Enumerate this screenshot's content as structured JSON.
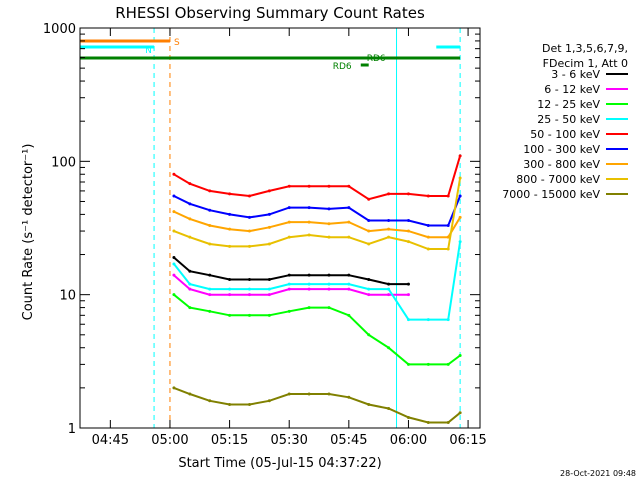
{
  "chart_data": {
    "type": "line",
    "title": "RHESSI Observing Summary Count Rates",
    "xlabel": "Start Time (05-Jul-15 04:37:22)",
    "ylabel": "Count Rate (s⁻¹ detector⁻¹)",
    "ylog": true,
    "xlim": [
      "04:37:22",
      "06:18:00"
    ],
    "ylim": [
      1,
      1000
    ],
    "x_ticks": [
      "04:45",
      "05:00",
      "05:15",
      "05:30",
      "05:45",
      "06:00",
      "06:15"
    ],
    "y_ticks": [
      "1",
      "10",
      "100",
      "1000"
    ],
    "legend_header": [
      "Det 1,3,5,6,7,9,",
      "FDecim 1, Att 0"
    ],
    "legend_position": "right",
    "footer_date": "28-Oct-2021 09:48",
    "x": [
      "05:01",
      "05:05",
      "05:10",
      "05:15",
      "05:20",
      "05:25",
      "05:30",
      "05:35",
      "05:40",
      "05:45",
      "05:50",
      "05:55",
      "06:00",
      "06:05",
      "06:10",
      "06:13"
    ],
    "series": [
      {
        "name": "3 - 6 keV",
        "color": "#000000",
        "values": [
          19,
          15,
          14,
          13,
          13,
          13,
          14,
          14,
          14,
          14,
          13,
          12,
          12,
          null,
          null,
          null
        ]
      },
      {
        "name": "6 - 12 keV",
        "color": "#ff00ff",
        "values": [
          14,
          11,
          10,
          10,
          10,
          10,
          11,
          11,
          11,
          11,
          10,
          10,
          10,
          null,
          null,
          null
        ]
      },
      {
        "name": "12 - 25 keV",
        "color": "#00ff00",
        "values": [
          10,
          8,
          7.5,
          7,
          7,
          7,
          7.5,
          8,
          8,
          7,
          5,
          4,
          3,
          3,
          3,
          3.5
        ]
      },
      {
        "name": "25 - 50 keV",
        "color": "#00ffff",
        "values": [
          17,
          12,
          11,
          11,
          11,
          11,
          12,
          12,
          12,
          12,
          11,
          11,
          6.5,
          6.5,
          6.5,
          25
        ]
      },
      {
        "name": "50 - 100 keV",
        "color": "#ff0000",
        "values": [
          80,
          68,
          60,
          57,
          55,
          60,
          65,
          65,
          65,
          65,
          52,
          57,
          57,
          55,
          55,
          110
        ]
      },
      {
        "name": "100 - 300 keV",
        "color": "#0000ff",
        "values": [
          55,
          48,
          43,
          40,
          38,
          40,
          45,
          45,
          44,
          45,
          36,
          36,
          36,
          33,
          33,
          55
        ]
      },
      {
        "name": "300 - 800 keV",
        "color": "#ffa500",
        "values": [
          42,
          37,
          33,
          31,
          30,
          32,
          35,
          35,
          34,
          35,
          30,
          31,
          30,
          27,
          27,
          38
        ]
      },
      {
        "name": "800 - 7000 keV",
        "color": "#e8c000",
        "values": [
          30,
          27,
          24,
          23,
          23,
          24,
          27,
          28,
          27,
          27,
          24,
          27,
          25,
          22,
          22,
          75
        ]
      },
      {
        "name": "7000 - 15000 keV",
        "color": "#808000",
        "values": [
          2,
          1.8,
          1.6,
          1.5,
          1.5,
          1.6,
          1.8,
          1.8,
          1.8,
          1.7,
          1.5,
          1.4,
          1.2,
          1.1,
          1.1,
          1.3
        ]
      }
    ],
    "bars": [
      {
        "label": "S",
        "color": "#ff7f00",
        "start": "04:37:22",
        "end": "05:00"
      },
      {
        "label": "N",
        "color": "#00ffff",
        "start": "04:37:22",
        "end": "04:56"
      },
      {
        "label": "",
        "color": "#00ffff",
        "start": "06:07",
        "end": "06:13"
      },
      {
        "label": "RD6",
        "color": "#008000",
        "start": "04:37:22",
        "end": "06:13"
      },
      {
        "label": "RD6",
        "color": "#008000",
        "start": "05:48",
        "end": "05:50"
      }
    ],
    "vlines": [
      {
        "time": "04:56",
        "color": "#00ffff",
        "style": "dashed"
      },
      {
        "time": "05:00",
        "color": "#ff7f00",
        "style": "dashed"
      },
      {
        "time": "05:57",
        "color": "#00ffff",
        "style": "solid"
      },
      {
        "time": "06:13",
        "color": "#00ffff",
        "style": "dashed"
      }
    ]
  }
}
